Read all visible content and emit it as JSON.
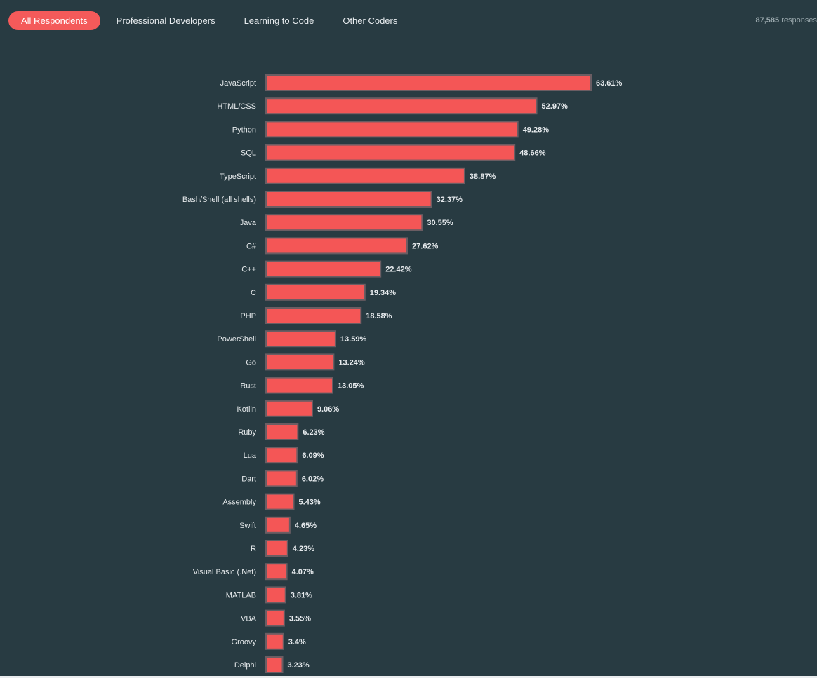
{
  "tabs": [
    {
      "label": "All Respondents",
      "active": true
    },
    {
      "label": "Professional Developers",
      "active": false
    },
    {
      "label": "Learning to Code",
      "active": false
    },
    {
      "label": "Other Coders",
      "active": false
    }
  ],
  "responses": {
    "count": "87,585",
    "suffix": "responses"
  },
  "colors": {
    "background": "#283b42",
    "bar": "#f45656",
    "accent": "#f45a5a"
  },
  "chart_data": {
    "type": "bar",
    "orientation": "horizontal",
    "categories": [
      "JavaScript",
      "HTML/CSS",
      "Python",
      "SQL",
      "TypeScript",
      "Bash/Shell (all shells)",
      "Java",
      "C#",
      "C++",
      "C",
      "PHP",
      "PowerShell",
      "Go",
      "Rust",
      "Kotlin",
      "Ruby",
      "Lua",
      "Dart",
      "Assembly",
      "Swift",
      "R",
      "Visual Basic (.Net)",
      "MATLAB",
      "VBA",
      "Groovy",
      "Delphi"
    ],
    "values": [
      63.61,
      52.97,
      49.28,
      48.66,
      38.87,
      32.37,
      30.55,
      27.62,
      22.42,
      19.34,
      18.58,
      13.59,
      13.24,
      13.05,
      9.06,
      6.23,
      6.09,
      6.02,
      5.43,
      4.65,
      4.23,
      4.07,
      3.81,
      3.55,
      3.4,
      3.23
    ],
    "value_labels": [
      "63.61%",
      "52.97%",
      "49.28%",
      "48.66%",
      "38.87%",
      "32.37%",
      "30.55%",
      "27.62%",
      "22.42%",
      "19.34%",
      "18.58%",
      "13.59%",
      "13.24%",
      "13.05%",
      "9.06%",
      "6.23%",
      "6.09%",
      "6.02%",
      "5.43%",
      "4.65%",
      "4.23%",
      "4.07%",
      "3.81%",
      "3.55%",
      "3.4%",
      "3.23%"
    ],
    "unit": "%",
    "xlim": [
      0,
      63.61
    ]
  }
}
